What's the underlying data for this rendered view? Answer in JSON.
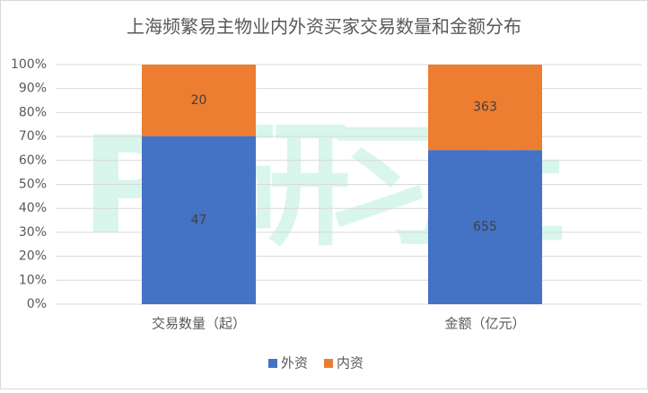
{
  "chart_data": {
    "type": "bar",
    "stacked": "percent",
    "title": "上海频繁易主物业内外资买家交易数量和金额分布",
    "categories": [
      "交易数量（起）",
      "金额（亿元）"
    ],
    "series": [
      {
        "name": "外资",
        "color": "#4472c4",
        "values": [
          47,
          655
        ]
      },
      {
        "name": "内资",
        "color": "#ed7d31",
        "values": [
          20,
          363
        ]
      }
    ],
    "ylim": [
      0,
      100
    ],
    "yticks": [
      {
        "value": 0,
        "label": "0%"
      },
      {
        "value": 10,
        "label": "10%"
      },
      {
        "value": 20,
        "label": "20%"
      },
      {
        "value": 30,
        "label": "30%"
      },
      {
        "value": 40,
        "label": "40%"
      },
      {
        "value": 50,
        "label": "50%"
      },
      {
        "value": 60,
        "label": "60%"
      },
      {
        "value": 70,
        "label": "70%"
      },
      {
        "value": 80,
        "label": "80%"
      },
      {
        "value": 90,
        "label": "90%"
      },
      {
        "value": 100,
        "label": "100%"
      }
    ],
    "grid": true,
    "legend": "bottom",
    "watermark": "PT研习社"
  }
}
